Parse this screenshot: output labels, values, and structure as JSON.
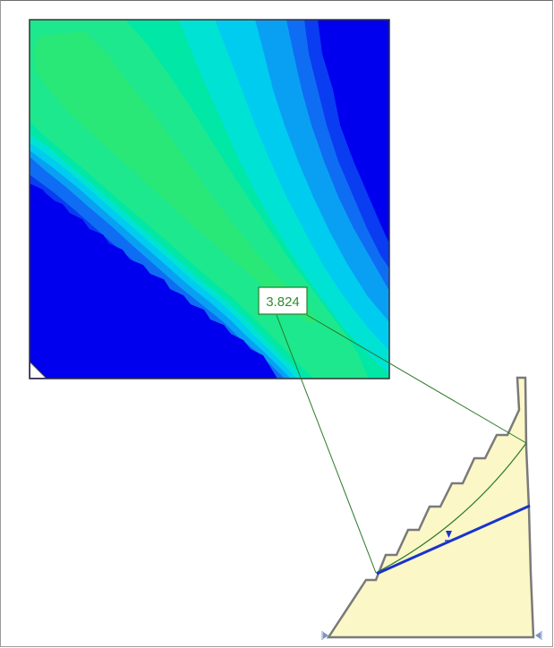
{
  "factor_of_safety": {
    "value": "3.824",
    "label_color": "#2e8b2e"
  },
  "contour_colors": {
    "lowest": "#0000ee",
    "band_2": "#0a3cf2",
    "band_3": "#0f6df3",
    "band_4": "#09a0f4",
    "band_5": "#00ccf0",
    "band_6": "#00e3d4",
    "band_7": "#00e7a6",
    "band_8": "#1de88d",
    "critical": "#29e878"
  },
  "slope": {
    "fill_color": "#fbf7c7",
    "outline_color": "#7a7a7a",
    "water_table_color": "#1a33cc",
    "slip_surface_color": "#2c7a2c"
  }
}
